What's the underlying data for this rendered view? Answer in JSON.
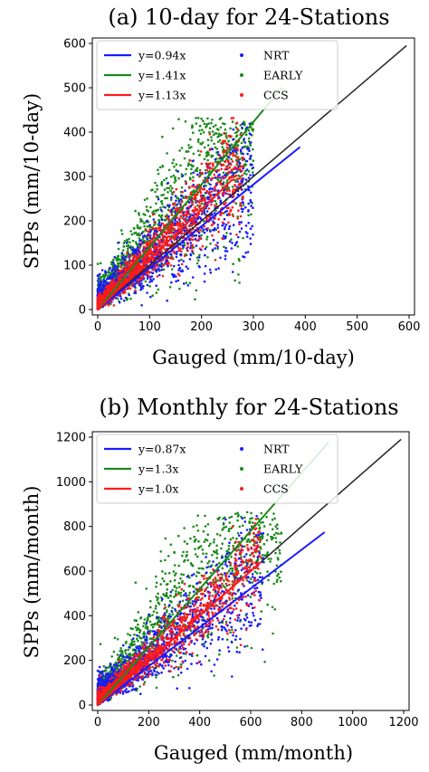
{
  "chart_data": [
    {
      "type": "scatter",
      "title": "(a) 10-day for 24-Stations",
      "xlabel": "Gauged (mm/10-day)",
      "ylabel": "SPPs (mm/10-day)",
      "xlim": [
        0,
        600
      ],
      "ylim": [
        0,
        600
      ],
      "xticks": [
        0,
        100,
        200,
        300,
        400,
        500,
        600
      ],
      "yticks": [
        0,
        100,
        200,
        300,
        400,
        500,
        600
      ],
      "grid": false,
      "legend_position": "top-left",
      "reference_line": {
        "label": "",
        "slope": 1.0,
        "x_range": [
          0,
          595
        ],
        "color": "#222222"
      },
      "series": [
        {
          "name": "NRT",
          "color": "#1a1aff",
          "fit_label": "y=0.94x",
          "slope": 0.94,
          "fit_x_range": [
            0,
            390
          ],
          "n_points": 1400,
          "x_max": 300,
          "spread": 0.55
        },
        {
          "name": "EARLY",
          "color": "#1a8a1a",
          "fit_label": "y=1.41x",
          "slope": 1.41,
          "fit_x_range": [
            0,
            355
          ],
          "n_points": 1400,
          "x_max": 300,
          "spread": 0.6
        },
        {
          "name": "CCS",
          "color": "#ff1a1a",
          "fit_label": "y=1.13x",
          "slope": 1.13,
          "fit_x_range": [
            0,
            260
          ],
          "n_points": 1400,
          "x_max": 280,
          "spread": 0.35
        }
      ]
    },
    {
      "type": "scatter",
      "title": "(b) Monthly for 24-Stations",
      "xlabel": "Gauged (mm/month)",
      "ylabel": "SPPs (mm/month)",
      "xlim": [
        0,
        1200
      ],
      "ylim": [
        0,
        1200
      ],
      "xticks": [
        0,
        200,
        400,
        600,
        800,
        1000,
        1200
      ],
      "yticks": [
        0,
        200,
        400,
        600,
        800,
        1000,
        1200
      ],
      "grid": false,
      "legend_position": "top-left",
      "reference_line": {
        "label": "",
        "slope": 1.0,
        "x_range": [
          0,
          1190
        ],
        "color": "#222222"
      },
      "series": [
        {
          "name": "NRT",
          "color": "#1a1aff",
          "fit_label": "y=0.87x",
          "slope": 0.87,
          "fit_x_range": [
            0,
            890
          ],
          "n_points": 1200,
          "x_max": 650,
          "spread": 0.5
        },
        {
          "name": "EARLY",
          "color": "#1a8a1a",
          "fit_label": "y=1.3x",
          "slope": 1.3,
          "fit_x_range": [
            0,
            905
          ],
          "n_points": 1200,
          "x_max": 720,
          "spread": 0.55
        },
        {
          "name": "CCS",
          "color": "#ff1a1a",
          "fit_label": "y=1.0x",
          "slope": 1.0,
          "fit_x_range": [
            0,
            640
          ],
          "n_points": 1200,
          "x_max": 640,
          "spread": 0.3
        }
      ]
    }
  ]
}
